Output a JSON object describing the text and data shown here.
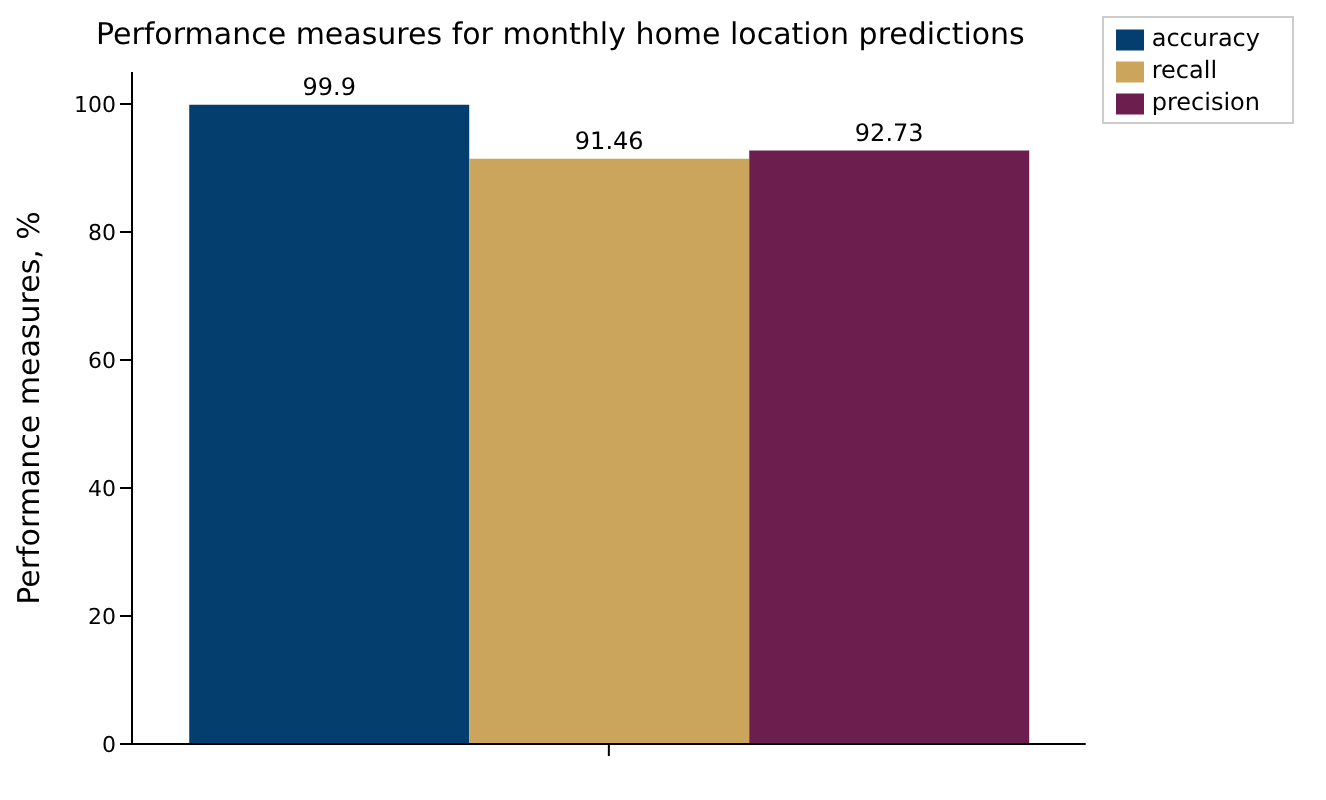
{
  "chart_data": {
    "type": "bar",
    "title": "Performance measures for monthly home location predictions",
    "ylabel": "Performance measures, %",
    "categories": [
      null
    ],
    "series": [
      {
        "name": "accuracy",
        "color": "#043e6f",
        "values": [
          99.9
        ]
      },
      {
        "name": "recall",
        "color": "#caa55b",
        "values": [
          91.46
        ]
      },
      {
        "name": "precision",
        "color": "#6c1f4f",
        "values": [
          92.73
        ]
      }
    ],
    "ylim": [
      0,
      105
    ],
    "yticks": [
      0,
      20,
      40,
      60,
      80,
      100
    ],
    "data_labels": true,
    "legend": "top right",
    "grid": false
  }
}
